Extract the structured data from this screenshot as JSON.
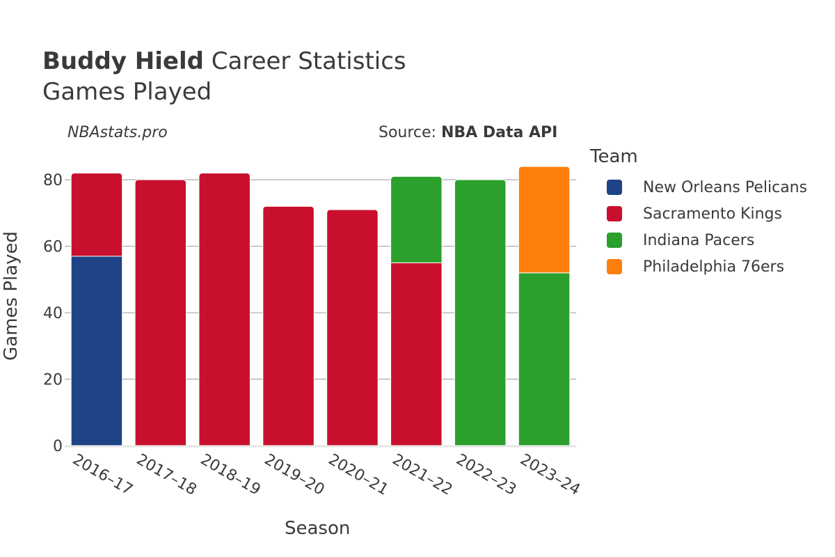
{
  "header": {
    "title_bold": "Buddy Hield",
    "title_rest": " Career Statistics",
    "subtitle": "Games Played"
  },
  "credits": {
    "left": "NBAstats.pro",
    "source_prefix": "Source: ",
    "source_bold": "NBA Data API"
  },
  "legend": {
    "title": "Team",
    "items": [
      {
        "label": "New Orleans Pelicans",
        "color": "#1f4387"
      },
      {
        "label": "Sacramento Kings",
        "color": "#c8102e"
      },
      {
        "label": "Indiana Pacers",
        "color": "#2ca02c"
      },
      {
        "label": "Philadelphia 76ers",
        "color": "#ff7f0e"
      }
    ]
  },
  "chart_data": {
    "type": "bar",
    "stacked": true,
    "title": "Buddy Hield Career Statistics",
    "subtitle": "Games Played",
    "xlabel": "Season",
    "ylabel": "Games Played",
    "ylim": [
      0,
      88
    ],
    "yticks": [
      0,
      20,
      40,
      60,
      80
    ],
    "grid": true,
    "legend_position": "right",
    "categories": [
      "2016–17",
      "2017–18",
      "2018–19",
      "2019–20",
      "2020–21",
      "2021–22",
      "2022–23",
      "2023–24"
    ],
    "series": [
      {
        "name": "New Orleans Pelicans",
        "color": "#1f4387",
        "values": [
          57,
          0,
          0,
          0,
          0,
          0,
          0,
          0
        ]
      },
      {
        "name": "Sacramento Kings",
        "color": "#c8102e",
        "values": [
          25,
          80,
          82,
          72,
          71,
          55,
          0,
          0
        ]
      },
      {
        "name": "Indiana Pacers",
        "color": "#2ca02c",
        "values": [
          0,
          0,
          0,
          0,
          0,
          26,
          80,
          52
        ]
      },
      {
        "name": "Philadelphia 76ers",
        "color": "#ff7f0e",
        "values": [
          0,
          0,
          0,
          0,
          0,
          0,
          0,
          32
        ]
      }
    ]
  }
}
